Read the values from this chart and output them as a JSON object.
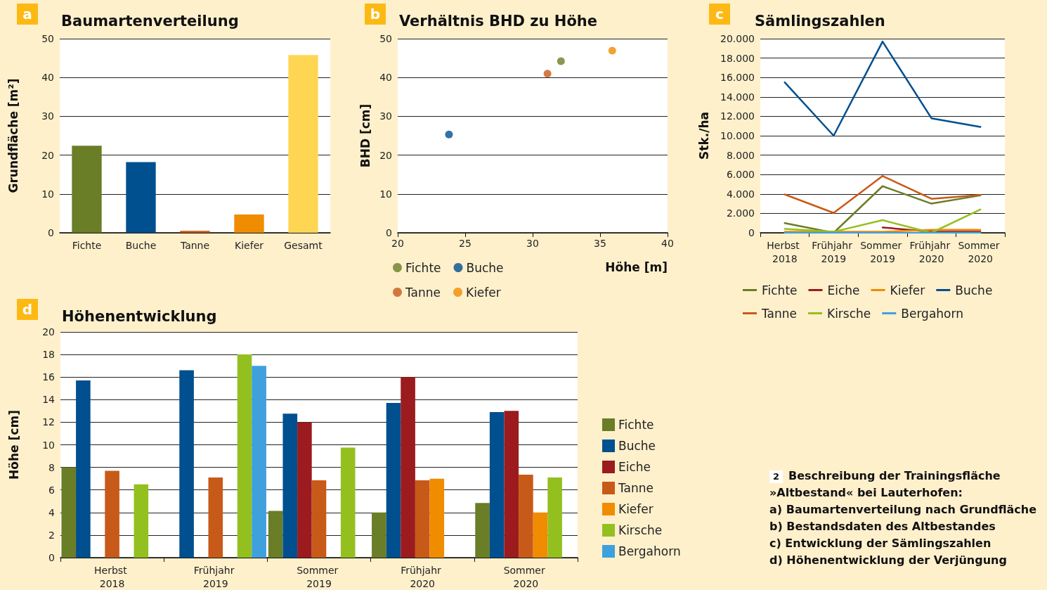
{
  "chart_data": [
    {
      "type": "bar",
      "title": "Baumartenverteilung",
      "ylabel": "Grundfläche [m²]",
      "annotations": [
        "a"
      ],
      "categories": [
        "Fichte",
        "Buche",
        "Tanne",
        "Kiefer",
        "Gesamt"
      ],
      "values": [
        22.4,
        18.2,
        0.5,
        4.7,
        45.8
      ],
      "colors": [
        "#6a7d27",
        "#004f8f",
        "#c85a19",
        "#f08c00",
        "#ffd654"
      ],
      "ylim": [
        0,
        50
      ],
      "yticks": [
        0,
        10,
        20,
        30,
        40,
        50
      ],
      "grid": "y",
      "legend": false
    },
    {
      "type": "scatter",
      "title": "Verhältnis BHD zu Höhe",
      "xlabel": "Höhe [m]",
      "ylabel": "BHD [cm]",
      "annotations": [
        "b"
      ],
      "series": [
        {
          "name": "Fichte",
          "color": "#6a7d27",
          "x": [
            32.1
          ],
          "values": [
            44.2
          ]
        },
        {
          "name": "Buche",
          "color": "#004f8f",
          "x": [
            23.8
          ],
          "values": [
            25.3
          ]
        },
        {
          "name": "Tanne",
          "color": "#c85a19",
          "x": [
            31.1
          ],
          "values": [
            41.0
          ]
        },
        {
          "name": "Kiefer",
          "color": "#f08c00",
          "x": [
            35.9
          ],
          "values": [
            46.9
          ]
        }
      ],
      "xlim": [
        20,
        40
      ],
      "xticks": [
        20,
        25,
        30,
        35,
        40
      ],
      "ylim": [
        0,
        50
      ],
      "yticks": [
        0,
        10,
        20,
        30,
        40,
        50
      ],
      "grid": "y",
      "legend": "bottom left",
      "marker": "circle"
    },
    {
      "type": "line",
      "title": "Sämlingszahlen",
      "ylabel": "Stk./ha",
      "annotations": [
        "c"
      ],
      "categories": [
        "Herbst 2018",
        "Frühjahr 2019",
        "Sommer 2019",
        "Frühjahr 2020",
        "Sommer 2020"
      ],
      "series": [
        {
          "name": "Fichte",
          "color": "#6a7d27",
          "values": [
            1000,
            0,
            4800,
            3000,
            3850
          ]
        },
        {
          "name": "Eiche",
          "color": "#9b1b1e",
          "values": [
            null,
            null,
            550,
            100,
            100
          ]
        },
        {
          "name": "Kiefer",
          "color": "#f08c00",
          "values": [
            100,
            100,
            100,
            300,
            300
          ]
        },
        {
          "name": "Buche",
          "color": "#004f8f",
          "values": [
            15500,
            10000,
            19700,
            11800,
            10900
          ]
        },
        {
          "name": "Tanne",
          "color": "#c85a19",
          "values": [
            3950,
            2050,
            5850,
            3500,
            3900
          ]
        },
        {
          "name": "Kirsche",
          "color": "#93c01f",
          "values": [
            400,
            100,
            1300,
            0,
            2400
          ]
        },
        {
          "name": "Bergahorn",
          "color": "#3fa0dc",
          "values": [
            0,
            0,
            0,
            0,
            0
          ]
        }
      ],
      "ylim": [
        0,
        20000
      ],
      "yticks": [
        0,
        {
          "value": 2000,
          "label": "2.000"
        },
        {
          "value": 4000,
          "label": "4.000"
        },
        {
          "value": 6000,
          "label": "6.000"
        },
        {
          "value": 8000,
          "label": "8.000"
        },
        {
          "value": 10000,
          "label": "10.000"
        },
        {
          "value": 12000,
          "label": "12.000"
        },
        {
          "value": 14000,
          "label": "14.000"
        },
        {
          "value": 16000,
          "label": "16.000"
        },
        {
          "value": 18000,
          "label": "18.000"
        },
        {
          "value": 20000,
          "label": "20.000"
        }
      ],
      "grid": "y",
      "legend": "bottom",
      "marker": "none",
      "line_style": "solid"
    },
    {
      "type": "bar",
      "title": "Höhenentwicklung",
      "ylabel": "Höhe [cm]",
      "annotations": [
        "d"
      ],
      "categories": [
        "Herbst 2018",
        "Frühjahr 2019",
        "Sommer 2019",
        "Frühjahr 2020",
        "Sommer 2020"
      ],
      "series": [
        {
          "name": "Fichte",
          "color": "#6a7d27",
          "values": [
            8.0,
            null,
            4.15,
            4.0,
            4.85
          ]
        },
        {
          "name": "Buche",
          "color": "#004f8f",
          "values": [
            15.7,
            16.6,
            12.75,
            13.7,
            12.9
          ]
        },
        {
          "name": "Eiche",
          "color": "#9b1b1e",
          "values": [
            null,
            null,
            12.0,
            16.0,
            13.0
          ]
        },
        {
          "name": "Tanne",
          "color": "#c85a19",
          "values": [
            7.7,
            7.1,
            6.85,
            6.85,
            7.35
          ]
        },
        {
          "name": "Kiefer",
          "color": "#f08c00",
          "values": [
            null,
            null,
            null,
            7.0,
            4.0
          ]
        },
        {
          "name": "Kirsche",
          "color": "#93c01f",
          "values": [
            6.5,
            18.0,
            9.75,
            null,
            7.1
          ]
        },
        {
          "name": "Bergahorn",
          "color": "#3fa0dc",
          "values": [
            null,
            17.0,
            null,
            null,
            null
          ]
        }
      ],
      "ylim": [
        0,
        20
      ],
      "yticks": [
        0,
        2,
        4,
        6,
        8,
        10,
        12,
        14,
        16,
        18,
        20
      ],
      "grid": "y",
      "legend": "right"
    },
    {
      "type": "other",
      "annotations": [
        "2",
        "Beschreibung der Trainingsfläche",
        "»Altbestand« bei Lauterhofen:",
        "a) Baumartenverteilung nach Grundfläche",
        "b) Bestandsdaten des Altbestandes",
        "c) Entwicklung der Sämlingszahlen",
        "d) Höhenentwicklung der Verjüngung"
      ]
    }
  ]
}
